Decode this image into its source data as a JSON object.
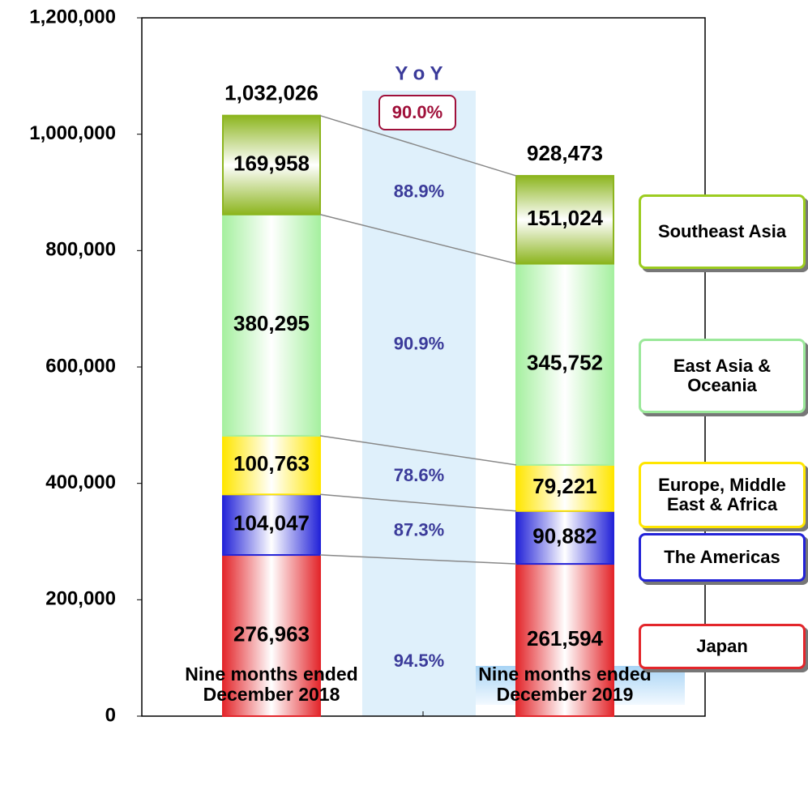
{
  "chart_data": {
    "type": "stacked_bar",
    "categories": [
      "Nine months ended December 2018",
      "Nine months ended December 2019"
    ],
    "series": [
      {
        "name": "Japan",
        "color": "#e3262b",
        "values": [
          276963,
          261594
        ],
        "value_labels": [
          "276,963",
          "261,594"
        ]
      },
      {
        "name": "The Americas",
        "color": "#2323d8",
        "values": [
          104047,
          90882
        ],
        "value_labels": [
          "104,047",
          "90,882"
        ]
      },
      {
        "name": "Europe, Middle East & Africa",
        "color": "#ffe600",
        "values": [
          100763,
          79221
        ],
        "value_labels": [
          "100,763",
          "79,221"
        ]
      },
      {
        "name": "East Asia & Oceania",
        "color": "#a6f0a0",
        "values": [
          380295,
          345752
        ],
        "value_labels": [
          "380,295",
          "345,752"
        ]
      },
      {
        "name": "Southeast Asia",
        "color": "#8cb51e",
        "values": [
          169958,
          151024
        ],
        "value_labels": [
          "169,958",
          "151,024"
        ]
      }
    ],
    "totals": [
      1032026,
      928473
    ],
    "total_labels": [
      "1,032,026",
      "928,473"
    ],
    "yoy": {
      "label": "Y o Y",
      "values": [
        94.5,
        87.3,
        78.6,
        90.9,
        88.9
      ],
      "value_labels": [
        "94.5%",
        "87.3%",
        "78.6%",
        "90.9%",
        "88.9%"
      ],
      "total": 90.0,
      "total_label": "90.0%"
    },
    "ylim": [
      0,
      1200000
    ],
    "yticks": [
      0,
      {
        "value": 200000,
        "label": "200,000"
      },
      {
        "value": 400000,
        "label": "400,000"
      },
      {
        "value": 600000,
        "label": "600,000"
      },
      {
        "value": 800000,
        "label": "800,000"
      },
      {
        "value": 1000000,
        "label": "1,000,000"
      },
      {
        "value": 1200000,
        "label": "1,200,000"
      }
    ]
  }
}
